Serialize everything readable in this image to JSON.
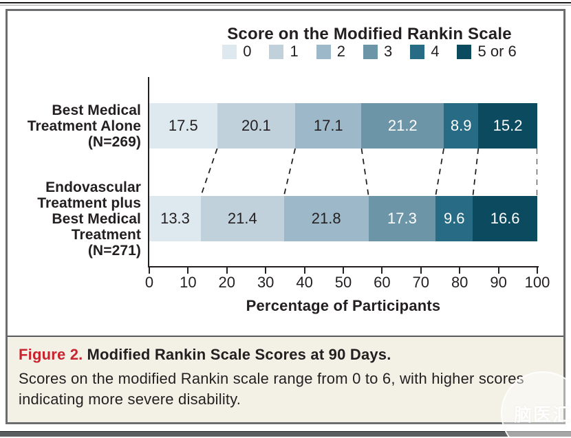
{
  "figure": {
    "caption_label": "Figure 2.",
    "caption_title": "Modified Rankin Scale Scores at 90 Days.",
    "caption_body": "Scores on the modified Rankin scale range from 0 to 6, with higher scores indicating more severe disability."
  },
  "watermark": {
    "text": "脑医汇"
  },
  "chart_data": {
    "type": "bar",
    "orientation": "horizontal-stacked",
    "legend_title": "Score on the Modified Rankin Scale",
    "legend_position": "top",
    "grid": false,
    "categories": [
      "Best Medical Treatment Alone (N=269)",
      "Endovascular Treatment plus Best Medical Treatment (N=271)"
    ],
    "category_label_lines": [
      [
        "Best Medical",
        "Treatment Alone",
        "(N=269)"
      ],
      [
        "Endovascular",
        "Treatment plus",
        "Best Medical",
        "Treatment",
        "(N=271)"
      ]
    ],
    "series": [
      {
        "name": "0",
        "color": "#dde9ef",
        "values": [
          17.5,
          13.3
        ]
      },
      {
        "name": "1",
        "color": "#c0d1dc",
        "values": [
          20.1,
          21.4
        ]
      },
      {
        "name": "2",
        "color": "#9db8c8",
        "values": [
          17.1,
          21.8
        ]
      },
      {
        "name": "3",
        "color": "#6d95a8",
        "values": [
          21.2,
          17.3
        ]
      },
      {
        "name": "4",
        "color": "#276c84",
        "values": [
          8.9,
          9.6
        ]
      },
      {
        "name": "5 or 6",
        "color": "#0b4a5f",
        "values": [
          15.2,
          16.6
        ]
      }
    ],
    "xlabel": "Percentage of Participants",
    "xlim": [
      0,
      100
    ],
    "x_ticks": [
      0,
      10,
      20,
      30,
      40,
      50,
      60,
      70,
      80,
      90,
      100
    ],
    "value_text_color_dark": "#231f20",
    "value_text_color_light": "#ffffff",
    "axis_color": "#231f20",
    "caption_accent_color": "#c8232e",
    "caption_background": "#f3f0e6"
  }
}
